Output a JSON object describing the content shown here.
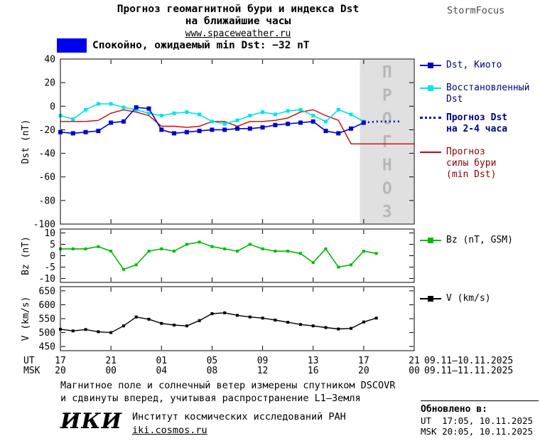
{
  "header": {
    "title_line1": "Прогноз геомагнитной бури и индекса Dst",
    "title_line2": "на ближайшие часы",
    "site": "www.spaceweather.ru",
    "brand": "StormFocus"
  },
  "status": {
    "text": "Спокойно, ожидаемый min Dst: −32 nT"
  },
  "colors": {
    "dst_blue": "#0000cd",
    "restored_cyan": "#00e5e5",
    "forecast_red": "#d40000",
    "bz_green": "#00bb00",
    "v_black": "#000000",
    "quiet_swatch": "#0000f0",
    "forecast_region": "#e0e0e0",
    "forecast_label_gray": "#b8b8b8",
    "legend_navy": "#000080",
    "legend_darkred": "#8b0000"
  },
  "legend": {
    "dst_kyoto": "Dst, Киото",
    "restored": "Восстановленный Dst",
    "forecast_dst": "Прогноз Dst на 2-4 часа",
    "storm": "Прогноз силы бури (min Dst)",
    "bz": "Bz (nT, GSM)",
    "v": "V (km/s)"
  },
  "axis": {
    "ut_label": "UT",
    "msk_label": "MSK",
    "tick_hours": [
      0,
      4,
      8,
      12,
      16,
      20,
      24,
      28
    ],
    "ut_ticks": [
      "17",
      "21",
      "01",
      "05",
      "09",
      "13",
      "17",
      "21"
    ],
    "msk_ticks": [
      "20",
      "00",
      "04",
      "08",
      "12",
      "16",
      "20",
      "00"
    ],
    "ut_dates": "09.11–10.11.2025",
    "msk_dates": "09.11–11.11.2025"
  },
  "chart_data": [
    {
      "type": "line",
      "ylabel": "Dst (nT)",
      "ylim": [
        -100,
        40
      ],
      "yticks": [
        40,
        20,
        0,
        -20,
        -40,
        -60,
        -80,
        -100
      ],
      "xlim": [
        0,
        28
      ],
      "x_description": "hours after 17:00 UT 09.11.2025, ticks every 4 h",
      "forecast_region": {
        "start": 23.7,
        "end": 28,
        "label": "ПРОГНОЗ"
      },
      "series": [
        {
          "id": "storm-forecast",
          "name": "Прогноз силы бури (min Dst)",
          "color_key": "forecast_red",
          "line_width": 1.4,
          "x": [
            0,
            1,
            2,
            3,
            4,
            5,
            6,
            7,
            8,
            9,
            10,
            11,
            12,
            13,
            14,
            15,
            16,
            17,
            18,
            19,
            20,
            21,
            22,
            23,
            24,
            25,
            26,
            27,
            28
          ],
          "y": [
            -13,
            -13,
            -13,
            -12,
            -6,
            -3,
            -5,
            -8,
            -17,
            -17,
            -18,
            -17,
            -13,
            -13,
            -17,
            -13,
            -13,
            -12,
            -10,
            -5,
            -3,
            -8,
            -12,
            -32,
            -32,
            -32,
            -32,
            -32,
            -32
          ]
        },
        {
          "id": "dst-restored",
          "name": "Восстановленный Dst",
          "color_key": "restored_cyan",
          "marker": "square",
          "marker_size": 5,
          "x": [
            0,
            1,
            2,
            3,
            4,
            5,
            6,
            7,
            8,
            9,
            10,
            11,
            12,
            13,
            14,
            15,
            16,
            17,
            18,
            19,
            20,
            21,
            22,
            23,
            24
          ],
          "y": [
            -8,
            -11,
            -3,
            2,
            2,
            -1,
            -3,
            -6,
            -8,
            -6,
            -5,
            -7,
            -13,
            -15,
            -12,
            -8,
            -5,
            -7,
            -4,
            -3,
            -8,
            -13,
            -3,
            -7,
            -13
          ]
        },
        {
          "id": "dst-kyoto",
          "name": "Dst, Киото",
          "color_key": "dst_blue",
          "marker": "square",
          "marker_size": 6,
          "x": [
            0,
            1,
            2,
            3,
            4,
            5,
            6,
            7,
            8,
            9,
            10,
            11,
            12,
            13,
            14,
            15,
            16,
            17,
            18,
            19,
            20,
            21,
            22,
            23,
            24
          ],
          "y": [
            -22,
            -23,
            -22,
            -21,
            -14,
            -13,
            -1,
            -2,
            -20,
            -23,
            -22,
            -21,
            -20,
            -20,
            -19,
            -19,
            -18,
            -16,
            -15,
            -14,
            -13,
            -21,
            -23,
            -19,
            -14
          ]
        },
        {
          "id": "dst-forecast",
          "name": "Прогноз Dst на 2-4 часа",
          "color_key": "dst_blue",
          "style": "dotted",
          "x": [
            24,
            25,
            26,
            27
          ],
          "y": [
            -14,
            -13,
            -13,
            -13
          ]
        }
      ]
    },
    {
      "type": "line",
      "ylabel": "Bz (nT)",
      "ylim": [
        -11.7,
        11.7
      ],
      "yticks": [
        10,
        5,
        0,
        -5,
        -10
      ],
      "xlim": [
        0,
        28
      ],
      "series": [
        {
          "id": "bz",
          "name": "Bz (nT, GSM)",
          "color_key": "bz_green",
          "marker": "square",
          "marker_size": 4,
          "x": [
            0,
            1,
            2,
            3,
            4,
            5,
            6,
            7,
            8,
            9,
            10,
            11,
            12,
            13,
            14,
            15,
            16,
            17,
            18,
            19,
            20,
            21,
            22,
            23,
            24,
            25
          ],
          "y": [
            3,
            3,
            3,
            4,
            2,
            -6,
            -4,
            2,
            3,
            2,
            5,
            6,
            4,
            3,
            2,
            5,
            3,
            2,
            2,
            1,
            -3,
            3,
            -5,
            -4,
            2,
            1
          ]
        }
      ]
    },
    {
      "type": "line",
      "ylabel": "V (km/s)",
      "ylim": [
        435,
        665
      ],
      "yticks": [
        650,
        600,
        550,
        500,
        450
      ],
      "xlim": [
        0,
        28
      ],
      "series": [
        {
          "id": "v",
          "name": "V (km/s)",
          "color_key": "v_black",
          "marker": "square",
          "marker_size": 4,
          "line_width": 1.4,
          "x": [
            0,
            1,
            2,
            3,
            4,
            5,
            6,
            7,
            8,
            9,
            10,
            11,
            12,
            13,
            14,
            15,
            16,
            17,
            18,
            19,
            20,
            21,
            22,
            23,
            24,
            25
          ],
          "y": [
            512,
            506,
            511,
            503,
            500,
            524,
            556,
            548,
            533,
            527,
            524,
            543,
            568,
            571,
            562,
            556,
            552,
            545,
            537,
            529,
            524,
            518,
            513,
            515,
            538,
            552
          ]
        }
      ]
    }
  ],
  "footer": {
    "note_line1": "Магнитное поле и солнечный ветер измерены спутником DSCOVR",
    "note_line2": "и сдвинуты вперед, учитывая распространение L1—Земля",
    "logo": "ИКИ",
    "institute": "Институт космических исследований РАН",
    "iki_site": "iki.cosmos.ru",
    "updated_label": "Обновлено в:",
    "updated_ut": "UT  17:05, 10.11.2025",
    "updated_msk": "MSK 20:05, 10.11.2025"
  }
}
